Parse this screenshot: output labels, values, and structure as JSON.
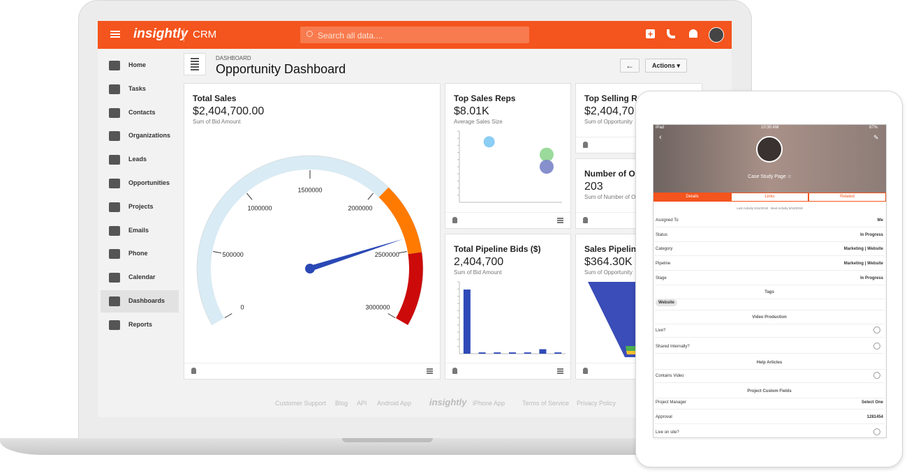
{
  "header": {
    "brand": "insightly",
    "app": "CRM",
    "search_placeholder": "Search all data...."
  },
  "sidebar": [
    "Home",
    "Tasks",
    "Contacts",
    "Organizations",
    "Leads",
    "Opportunities",
    "Projects",
    "Emails",
    "Phone",
    "Calendar",
    "Dashboards",
    "Reports"
  ],
  "page": {
    "breadcrumb": "DASHBOARD",
    "title": "Opportunity Dashboard",
    "actions": "Actions"
  },
  "chart_data": [
    {
      "type": "gauge",
      "title": "Total Sales",
      "subtitle": "$2,404,700.00",
      "caption": "Sum of Bid Amount",
      "value": 2404700,
      "ylim": [
        0,
        3000000
      ],
      "yticks": [
        0,
        500000,
        1000000,
        1500000,
        2000000,
        2500000,
        3000000
      ],
      "bands": [
        {
          "to": 2050000,
          "color": "#d9ebf4"
        },
        {
          "to": 2520000,
          "color": "#ff7a00"
        },
        {
          "to": 3000000,
          "color": "#cc0a0a"
        }
      ],
      "color": "#2a48b5"
    },
    {
      "type": "scatter",
      "title": "Top Sales Reps",
      "subtitle": "$8.01K",
      "caption": "Average Sales Size",
      "xlim": [
        0,
        100
      ],
      "ylim": [
        0,
        100
      ],
      "x": [
        29,
        85,
        85
      ],
      "values": [
        85,
        67,
        50
      ],
      "colors": [
        "#7ec8f2",
        "#8fd68f",
        "#7a84c8"
      ]
    },
    {
      "type": "bar",
      "title": "Total Pipeline Bids ($)",
      "subtitle": "2,404,700",
      "caption": "Sum of Bid Amount",
      "categories": [
        null,
        null,
        null,
        null,
        null,
        null,
        null
      ],
      "values": [
        100,
        2,
        2,
        2,
        2,
        7,
        2
      ],
      "ylim": [
        0,
        112
      ],
      "color": "#2f4ab8"
    }
  ],
  "cards": [
    {
      "title": "Top Selling Re",
      "subtitle": "$2,404,70",
      "caption": "Sum of Opportunity"
    },
    {
      "title": "Number of Op",
      "subtitle": "203",
      "caption": "Sum of Number of O"
    },
    {
      "title": "Sales Pipeline",
      "subtitle": "$364.30K",
      "caption": "Sum of Opportunity"
    }
  ],
  "footer": [
    "Customer Support",
    "Blog",
    "API",
    "Android App",
    "insightly",
    "iPhone App",
    "Terms of Service",
    "Privacy Policy"
  ],
  "tablet": {
    "status": {
      "device": "iPad",
      "time": "10:30 AM",
      "battery": "87%"
    },
    "record": "Case Study Page ☆",
    "tabs": [
      "Details",
      "Links",
      "Related"
    ],
    "activity": "Last Activity 5/11/2018 · Next Activity 5/15/2018",
    "rows": [
      {
        "label": "Assigned To",
        "value": "Me"
      },
      {
        "label": "Status",
        "value": "In Progress"
      },
      {
        "label": "Category",
        "value": "Marketing | Website"
      },
      {
        "label": "Pipeline",
        "value": "Marketing | Website"
      },
      {
        "label": "Stage",
        "value": "In Progress"
      },
      {
        "section": "Tags"
      },
      {
        "tag": "Website"
      },
      {
        "section": "Video Production"
      },
      {
        "label": "Live?"
      },
      {
        "label": "Shared Internally?"
      },
      {
        "section": "Help Articles"
      },
      {
        "label": "Contains Video"
      },
      {
        "section": "Project Custom Fields"
      },
      {
        "label": "Project Manager",
        "value": "Select One"
      },
      {
        "label": "Approval",
        "value": "1281454"
      },
      {
        "label": "Live on site?"
      }
    ]
  }
}
